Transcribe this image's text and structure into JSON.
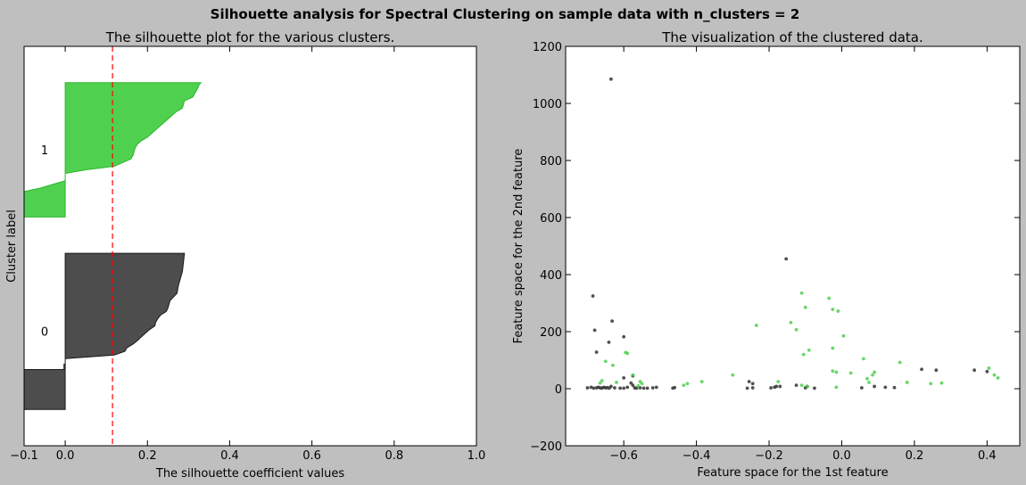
{
  "figure": {
    "suptitle": "Silhouette analysis for Spectral Clustering on sample data with n_clusters = 2",
    "background_color": "#bfbfbf"
  },
  "chart_data": [
    {
      "type": "area",
      "title": "The silhouette plot for the various clusters.",
      "xlabel": "The silhouette coefficient values",
      "ylabel": "Cluster label",
      "xlim": [
        -0.1,
        1.0
      ],
      "ylim": [
        0,
        110
      ],
      "xticks": [
        -0.1,
        0.0,
        0.2,
        0.4,
        0.6,
        0.8,
        1.0
      ],
      "xtick_labels": [
        "−0.1",
        "0.0",
        "0.2",
        "0.4",
        "0.6",
        "0.8",
        "1.0"
      ],
      "yticks": [],
      "grid": false,
      "average_silhouette": 0.115,
      "average_line_color": "#ff0000",
      "clusters": [
        {
          "label": "0",
          "color": "#4d4d4d",
          "edge_color": "#1a1a1a",
          "y_range": [
            10,
            53
          ],
          "profile": [
            [
              53,
              0.29
            ],
            [
              51,
              0.288
            ],
            [
              48,
              0.285
            ],
            [
              46,
              0.28
            ],
            [
              44,
              0.275
            ],
            [
              42,
              0.272
            ],
            [
              40,
              0.255
            ],
            [
              38,
              0.25
            ],
            [
              37,
              0.246
            ],
            [
              36,
              0.232
            ],
            [
              35,
              0.225
            ],
            [
              34,
              0.22
            ],
            [
              33,
              0.218
            ],
            [
              32,
              0.205
            ],
            [
              31,
              0.195
            ],
            [
              30,
              0.185
            ],
            [
              29,
              0.176
            ],
            [
              28,
              0.165
            ],
            [
              27,
              0.15
            ],
            [
              26,
              0.145
            ],
            [
              25,
              0.12
            ],
            [
              24,
              0.0
            ],
            [
              22.5,
              0.0
            ],
            [
              22.5,
              -0.003
            ],
            [
              21,
              -0.003
            ],
            [
              21,
              -0.1
            ],
            [
              10,
              -0.1
            ]
          ]
        },
        {
          "label": "1",
          "color": "#4fd04f",
          "edge_color": "#2cb82c",
          "y_range": [
            63,
            100
          ],
          "profile": [
            [
              100,
              0.33
            ],
            [
              99.5,
              0.326
            ],
            [
              98,
              0.32
            ],
            [
              96,
              0.31
            ],
            [
              95,
              0.29
            ],
            [
              93,
              0.285
            ],
            [
              92,
              0.27
            ],
            [
              91,
              0.26
            ],
            [
              90,
              0.25
            ],
            [
              89,
              0.24
            ],
            [
              87,
              0.22
            ],
            [
              86,
              0.21
            ],
            [
              85,
              0.2
            ],
            [
              84,
              0.185
            ],
            [
              83,
              0.175
            ],
            [
              82,
              0.17
            ],
            [
              80,
              0.165
            ],
            [
              79,
              0.16
            ],
            [
              78,
              0.14
            ],
            [
              77,
              0.12
            ],
            [
              76,
              0.05
            ],
            [
              75,
              0.0
            ],
            [
              73,
              0.0
            ],
            [
              72,
              -0.03
            ],
            [
              71,
              -0.06
            ],
            [
              70,
              -0.1
            ],
            [
              63,
              -0.1
            ]
          ]
        }
      ]
    },
    {
      "type": "scatter",
      "title": "The visualization of the clustered data.",
      "xlabel": "Feature space for the 1st feature",
      "ylabel": "Feature space for the 2nd feature",
      "xlim": [
        -0.76,
        0.49
      ],
      "ylim": [
        -200,
        1200
      ],
      "xticks": [
        -0.6,
        -0.4,
        -0.2,
        0.0,
        0.2,
        0.4
      ],
      "xtick_labels": [
        "−0.6",
        "−0.4",
        "−0.2",
        "0.0",
        "0.2",
        "0.4"
      ],
      "yticks": [
        -200,
        0,
        200,
        400,
        600,
        800,
        1000,
        1200
      ],
      "ytick_labels": [
        "−200",
        "0",
        "200",
        "400",
        "600",
        "800",
        "1000",
        "1200"
      ],
      "grid": false,
      "series": [
        {
          "cluster": "0",
          "color": "#333333",
          "points": [
            [
              -0.635,
              1085
            ],
            [
              -0.685,
              325
            ],
            [
              -0.68,
              205
            ],
            [
              -0.632,
              237
            ],
            [
              -0.675,
              128
            ],
            [
              -0.641,
              163
            ],
            [
              -0.6,
              182
            ],
            [
              -0.153,
              455
            ],
            [
              -0.7,
              3
            ],
            [
              -0.69,
              5
            ],
            [
              -0.683,
              2
            ],
            [
              -0.675,
              3
            ],
            [
              -0.67,
              5
            ],
            [
              -0.665,
              3
            ],
            [
              -0.66,
              2
            ],
            [
              -0.655,
              5
            ],
            [
              -0.65,
              3
            ],
            [
              -0.645,
              4
            ],
            [
              -0.64,
              2
            ],
            [
              -0.635,
              8
            ],
            [
              -0.625,
              3
            ],
            [
              -0.61,
              2
            ],
            [
              -0.6,
              2
            ],
            [
              -0.59,
              5
            ],
            [
              -0.58,
              20
            ],
            [
              -0.575,
              12
            ],
            [
              -0.57,
              3
            ],
            [
              -0.565,
              2
            ],
            [
              -0.555,
              3
            ],
            [
              -0.545,
              2
            ],
            [
              -0.535,
              2
            ],
            [
              -0.52,
              3
            ],
            [
              -0.51,
              5
            ],
            [
              -0.465,
              2
            ],
            [
              -0.46,
              4
            ],
            [
              -0.26,
              2
            ],
            [
              -0.255,
              25
            ],
            [
              -0.245,
              18
            ],
            [
              -0.245,
              3
            ],
            [
              -0.195,
              3
            ],
            [
              -0.185,
              5
            ],
            [
              -0.18,
              8
            ],
            [
              -0.17,
              8
            ],
            [
              -0.125,
              12
            ],
            [
              -0.1,
              3
            ],
            [
              -0.075,
              2
            ],
            [
              -0.095,
              8
            ],
            [
              0.055,
              3
            ],
            [
              0.09,
              8
            ],
            [
              0.12,
              5
            ],
            [
              0.145,
              4
            ],
            [
              0.22,
              68
            ],
            [
              0.26,
              65
            ],
            [
              0.365,
              65
            ],
            [
              0.4,
              60
            ],
            [
              -0.6,
              38
            ],
            [
              -0.575,
              45
            ]
          ]
        },
        {
          "cluster": "1",
          "color": "#4fd04f",
          "points": [
            [
              -0.11,
              335
            ],
            [
              -0.035,
              317
            ],
            [
              -0.025,
              278
            ],
            [
              -0.1,
              285
            ],
            [
              -0.01,
              272
            ],
            [
              -0.14,
              232
            ],
            [
              -0.235,
              222
            ],
            [
              -0.125,
              207
            ],
            [
              -0.595,
              127
            ],
            [
              -0.59,
              124
            ],
            [
              -0.65,
              96
            ],
            [
              -0.63,
              82
            ],
            [
              0.005,
              185
            ],
            [
              -0.09,
              135
            ],
            [
              -0.105,
              120
            ],
            [
              -0.025,
              142
            ],
            [
              0.06,
              105
            ],
            [
              0.085,
              48
            ],
            [
              0.09,
              58
            ],
            [
              0.16,
              92
            ],
            [
              0.18,
              22
            ],
            [
              0.245,
              18
            ],
            [
              0.275,
              20
            ],
            [
              0.405,
              72
            ],
            [
              0.42,
              48
            ],
            [
              0.43,
              38
            ],
            [
              -0.665,
              20
            ],
            [
              -0.66,
              28
            ],
            [
              -0.62,
              22
            ],
            [
              -0.575,
              48
            ],
            [
              -0.56,
              10
            ],
            [
              -0.555,
              25
            ],
            [
              -0.55,
              18
            ],
            [
              -0.435,
              12
            ],
            [
              -0.425,
              18
            ],
            [
              -0.385,
              25
            ],
            [
              -0.3,
              48
            ],
            [
              -0.175,
              25
            ],
            [
              -0.11,
              12
            ],
            [
              -0.095,
              8
            ],
            [
              -0.025,
              62
            ],
            [
              -0.015,
              58
            ],
            [
              0.025,
              55
            ],
            [
              0.07,
              35
            ],
            [
              0.075,
              22
            ],
            [
              -0.015,
              5
            ]
          ]
        }
      ]
    }
  ]
}
